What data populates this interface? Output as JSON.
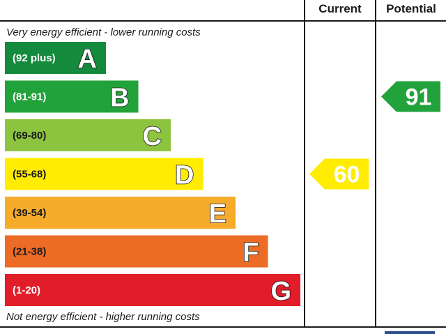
{
  "chart_data": {
    "type": "bar",
    "columns": {
      "current": "Current",
      "potential": "Potential"
    },
    "top_note": "Very energy efficient - lower running costs",
    "bottom_note": "Not energy efficient - higher running costs",
    "bands": [
      {
        "letter": "A",
        "range": "(92 plus)",
        "min": 92,
        "max": 100,
        "color": "#138a3c"
      },
      {
        "letter": "B",
        "range": "(81-91)",
        "min": 81,
        "max": 91,
        "color": "#22a23b"
      },
      {
        "letter": "C",
        "range": "(69-80)",
        "min": 69,
        "max": 80,
        "color": "#8cc43f"
      },
      {
        "letter": "D",
        "range": "(55-68)",
        "min": 55,
        "max": 68,
        "color": "#ffec00"
      },
      {
        "letter": "E",
        "range": "(39-54)",
        "min": 39,
        "max": 54,
        "color": "#f6ab2a"
      },
      {
        "letter": "F",
        "range": "(21-38)",
        "min": 21,
        "max": 38,
        "color": "#ec6b25"
      },
      {
        "letter": "G",
        "range": "(1-20)",
        "min": 1,
        "max": 20,
        "color": "#e11d2a"
      }
    ],
    "current": {
      "value": 60,
      "label": "60",
      "band": "D",
      "color": "#ffec00"
    },
    "potential": {
      "value": 91,
      "label": "91",
      "band": "B",
      "color": "#22a23b"
    }
  }
}
